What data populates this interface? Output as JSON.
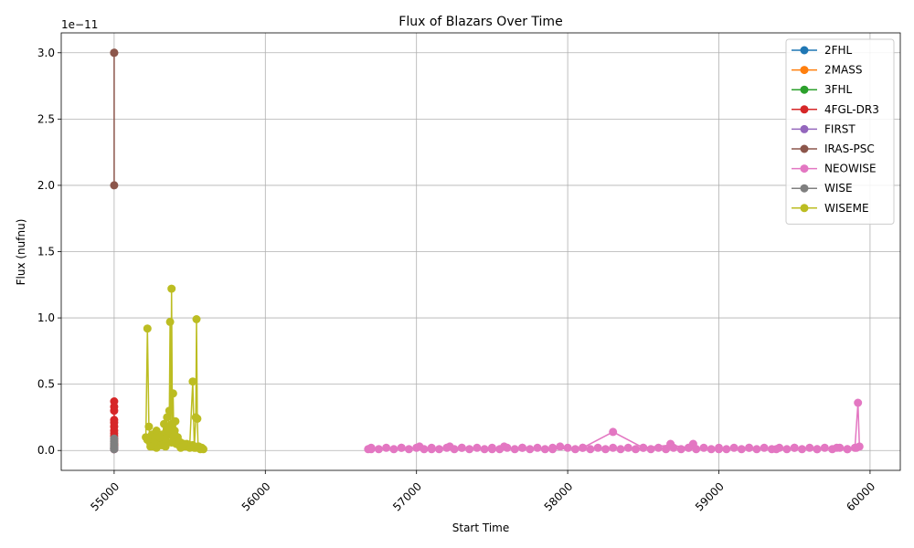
{
  "chart_data": {
    "type": "line",
    "title": "Flux of Blazars Over Time",
    "xlabel": "Start Time",
    "ylabel": "Flux (nufnu)",
    "y_offset_label": "1e−11",
    "xlim": [
      54650,
      60200
    ],
    "ylim": [
      -0.15,
      3.15
    ],
    "xticks": [
      55000,
      56000,
      57000,
      58000,
      59000,
      60000
    ],
    "yticks": [
      0.0,
      0.5,
      1.0,
      1.5,
      2.0,
      2.5,
      3.0
    ],
    "xtick_labels": [
      "55000",
      "56000",
      "57000",
      "58000",
      "59000",
      "60000"
    ],
    "ytick_labels": [
      "0.0",
      "0.5",
      "1.0",
      "1.5",
      "2.0",
      "2.5",
      "3.0"
    ],
    "grid": true,
    "legend_position": "top-right",
    "series": [
      {
        "name": "2FHL",
        "color": "#1f77b4",
        "x": [
          55000,
          55000
        ],
        "y": [
          0.01,
          0.02
        ]
      },
      {
        "name": "2MASS",
        "color": "#ff7f0e",
        "x": [
          55000,
          55000,
          55000
        ],
        "y": [
          0.02,
          0.04,
          0.01
        ]
      },
      {
        "name": "3FHL",
        "color": "#2ca02c",
        "x": [
          55000,
          55000
        ],
        "y": [
          0.03,
          0.05
        ]
      },
      {
        "name": "4FGL-DR3",
        "color": "#d62728",
        "x": [
          55000,
          55000,
          55000,
          55000,
          55000,
          55000,
          55000,
          55000,
          55000,
          55000,
          55000,
          55000,
          55000,
          55000,
          55000,
          55000
        ],
        "y": [
          0.37,
          0.33,
          0.3,
          0.23,
          0.21,
          0.18,
          0.15,
          0.13,
          0.11,
          0.09,
          0.07,
          0.05,
          0.04,
          0.03,
          0.02,
          0.01
        ]
      },
      {
        "name": "FIRST",
        "color": "#9467bd",
        "x": [
          55000,
          55000
        ],
        "y": [
          0.01,
          0.03
        ]
      },
      {
        "name": "IRAS-PSC",
        "color": "#8c564b",
        "x": [
          55000,
          55000,
          55000
        ],
        "y": [
          3.0,
          2.0,
          3.0
        ]
      },
      {
        "name": "NEOWISE",
        "color": "#e377c2",
        "x": [
          56680,
          56700,
          56750,
          56800,
          56850,
          56900,
          56950,
          57000,
          57020,
          57050,
          57100,
          57150,
          57200,
          57220,
          57250,
          57300,
          57350,
          57400,
          57450,
          57500,
          57550,
          57580,
          57600,
          57650,
          57700,
          57750,
          57800,
          57850,
          57900,
          57950,
          58000,
          58050,
          58100,
          58150,
          58200,
          58250,
          58300,
          58350,
          58400,
          58450,
          58500,
          58550,
          58600,
          58650,
          58680,
          58700,
          58750,
          58800,
          58830,
          58850,
          58900,
          58950,
          59000,
          59050,
          59100,
          59150,
          59200,
          59250,
          59300,
          59350,
          59400,
          59450,
          59500,
          59550,
          59600,
          59650,
          59700,
          59750,
          59800,
          59850,
          59900,
          59920,
          59930,
          59910,
          59850,
          59780,
          59650,
          59500,
          59380,
          59200,
          59000,
          58800,
          58680,
          58500,
          58300,
          58100,
          57900,
          57700,
          57500,
          57300,
          57100,
          56900,
          56700
        ],
        "y": [
          0.01,
          0.02,
          0.01,
          0.02,
          0.01,
          0.02,
          0.01,
          0.02,
          0.03,
          0.01,
          0.02,
          0.01,
          0.02,
          0.03,
          0.01,
          0.02,
          0.01,
          0.02,
          0.01,
          0.02,
          0.01,
          0.03,
          0.02,
          0.01,
          0.02,
          0.01,
          0.02,
          0.01,
          0.02,
          0.03,
          0.02,
          0.01,
          0.02,
          0.01,
          0.02,
          0.01,
          0.02,
          0.01,
          0.02,
          0.01,
          0.02,
          0.01,
          0.02,
          0.01,
          0.05,
          0.02,
          0.01,
          0.02,
          0.05,
          0.01,
          0.02,
          0.01,
          0.02,
          0.01,
          0.02,
          0.01,
          0.02,
          0.01,
          0.02,
          0.01,
          0.02,
          0.01,
          0.02,
          0.01,
          0.02,
          0.01,
          0.02,
          0.01,
          0.02,
          0.01,
          0.02,
          0.36,
          0.03,
          0.02,
          0.01,
          0.02,
          0.01,
          0.02,
          0.01,
          0.02,
          0.01,
          0.02,
          0.04,
          0.02,
          0.14,
          0.02,
          0.01,
          0.02,
          0.01,
          0.02,
          0.01,
          0.02,
          0.01
        ]
      },
      {
        "name": "WISE",
        "color": "#7f7f7f",
        "x": [
          55000,
          55000,
          55000,
          55000,
          55000,
          55000
        ],
        "y": [
          0.09,
          0.07,
          0.05,
          0.03,
          0.02,
          0.01
        ]
      },
      {
        "name": "WISEME",
        "color": "#bcbd22",
        "x": [
          55210,
          55220,
          55230,
          55240,
          55250,
          55260,
          55270,
          55280,
          55290,
          55300,
          55310,
          55320,
          55330,
          55340,
          55350,
          55355,
          55360,
          55365,
          55370,
          55375,
          55380,
          55385,
          55390,
          55395,
          55400,
          55405,
          55410,
          55420,
          55430,
          55440,
          55460,
          55480,
          55500,
          55520,
          55530,
          55540,
          55545,
          55550,
          55555,
          55560,
          55570,
          55580,
          55590,
          55560,
          55540,
          55520,
          55500,
          55480,
          55460,
          55440,
          55420,
          55400,
          55380,
          55360,
          55340,
          55320,
          55300,
          55280,
          55260,
          55240,
          55220
        ],
        "y": [
          0.1,
          0.92,
          0.18,
          0.05,
          0.12,
          0.03,
          0.1,
          0.15,
          0.06,
          0.08,
          0.04,
          0.12,
          0.2,
          0.03,
          0.25,
          0.06,
          0.18,
          0.3,
          0.97,
          0.12,
          1.22,
          0.2,
          0.43,
          0.08,
          0.15,
          0.22,
          0.05,
          0.1,
          0.04,
          0.06,
          0.03,
          0.05,
          0.04,
          0.52,
          0.02,
          0.25,
          0.99,
          0.24,
          0.03,
          0.02,
          0.01,
          0.02,
          0.01,
          0.03,
          0.02,
          0.04,
          0.02,
          0.03,
          0.05,
          0.02,
          0.08,
          0.12,
          0.06,
          0.15,
          0.09,
          0.04,
          0.1,
          0.02,
          0.06,
          0.03,
          0.08
        ]
      }
    ]
  }
}
